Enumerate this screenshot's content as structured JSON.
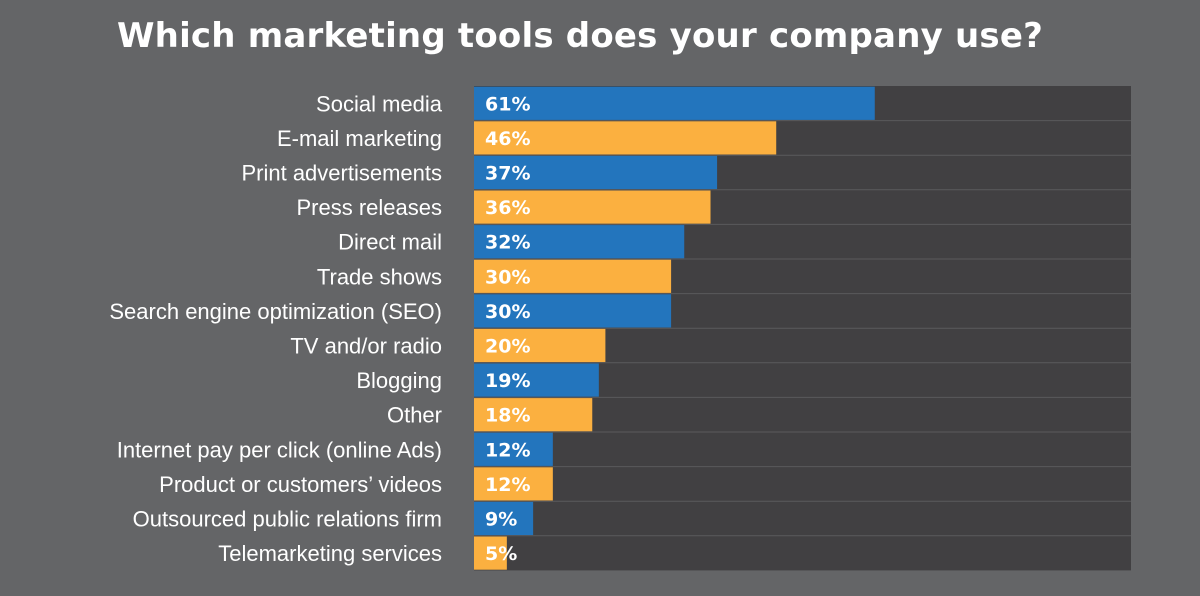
{
  "chart_data": {
    "type": "bar",
    "orientation": "horizontal",
    "title": "Which marketing tools does your company use?",
    "categories": [
      "Social media",
      "E-mail marketing",
      "Print advertisements",
      "Press releases",
      "Direct mail",
      "Trade shows",
      "Search engine optimization (SEO)",
      "TV and/or radio",
      "Blogging",
      "Other",
      "Internet pay per click (online Ads)",
      "Product or customers’ videos",
      "Outsourced public relations firm",
      "Telemarketing services"
    ],
    "values": [
      61,
      46,
      37,
      36,
      32,
      30,
      30,
      20,
      19,
      18,
      12,
      12,
      9,
      5
    ],
    "value_labels": [
      "61%",
      "46%",
      "37%",
      "36%",
      "32%",
      "30%",
      "30%",
      "20%",
      "19%",
      "18%",
      "12%",
      "12%",
      "9%",
      "5%"
    ],
    "xlim": [
      0,
      100
    ],
    "colors": {
      "bar_primary": "#2375bd",
      "bar_secondary": "#fbb040",
      "track": "#414042",
      "background": "#646567",
      "text": "#ffffff"
    }
  }
}
